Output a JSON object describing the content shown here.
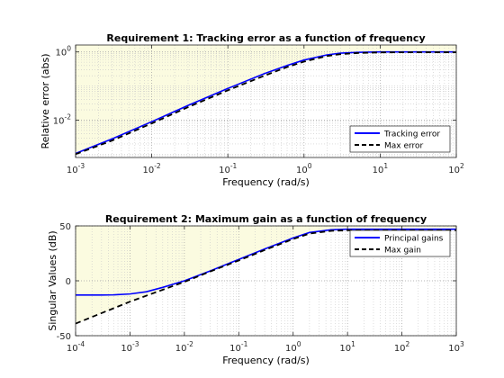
{
  "chart_data": [
    {
      "type": "line",
      "title": "Requirement 1: Tracking error as a function of frequency",
      "xlabel": "Frequency (rad/s)",
      "ylabel": "Relative error (abs)",
      "xscale": "log",
      "yscale": "log",
      "xlim": [
        0.001,
        100
      ],
      "ylim": [
        0.0008,
        1.6
      ],
      "x_ticks": [
        {
          "v": 0.001,
          "base": "10",
          "exp": "-3"
        },
        {
          "v": 0.01,
          "base": "10",
          "exp": "-2"
        },
        {
          "v": 0.1,
          "base": "10",
          "exp": "-1"
        },
        {
          "v": 1,
          "base": "10",
          "exp": "0"
        },
        {
          "v": 10,
          "base": "10",
          "exp": "1"
        },
        {
          "v": 100,
          "base": "10",
          "exp": "2"
        }
      ],
      "y_ticks": [
        {
          "v": 0.01,
          "base": "10",
          "exp": "-2"
        },
        {
          "v": 1,
          "base": "10",
          "exp": "0"
        }
      ],
      "grid": true,
      "legend_position": "bottom-right",
      "shaded_region": "above max error",
      "series": [
        {
          "name": "Tracking error",
          "color": "#0000ff",
          "style": "solid",
          "x": [
            0.001,
            0.003,
            0.01,
            0.03,
            0.1,
            0.3,
            0.6,
            1,
            2,
            3,
            5,
            10,
            30,
            100
          ],
          "y": [
            0.00105,
            0.0028,
            0.009,
            0.027,
            0.085,
            0.23,
            0.4,
            0.58,
            0.82,
            0.92,
            0.97,
            1.0,
            1.0,
            1.0
          ]
        },
        {
          "name": "Max error",
          "color": "#000000",
          "style": "dashed",
          "x": [
            0.001,
            0.003,
            0.01,
            0.03,
            0.1,
            0.3,
            0.6,
            1,
            2,
            3,
            5,
            10,
            30,
            100
          ],
          "y": [
            0.001,
            0.0025,
            0.008,
            0.024,
            0.075,
            0.2,
            0.36,
            0.52,
            0.76,
            0.86,
            0.93,
            0.97,
            0.98,
            0.98
          ]
        }
      ]
    },
    {
      "type": "line",
      "title": "Requirement 2: Maximum gain as a function of frequency",
      "xlabel": "Frequency (rad/s)",
      "ylabel": "Singular Values (dB)",
      "xscale": "log",
      "yscale": "linear",
      "xlim": [
        0.0001,
        1000
      ],
      "ylim": [
        -50,
        50
      ],
      "x_ticks": [
        {
          "v": 0.0001,
          "base": "10",
          "exp": "-4"
        },
        {
          "v": 0.001,
          "base": "10",
          "exp": "-3"
        },
        {
          "v": 0.01,
          "base": "10",
          "exp": "-2"
        },
        {
          "v": 0.1,
          "base": "10",
          "exp": "-1"
        },
        {
          "v": 1,
          "base": "10",
          "exp": "0"
        },
        {
          "v": 10,
          "base": "10",
          "exp": "1"
        },
        {
          "v": 100,
          "base": "10",
          "exp": "2"
        },
        {
          "v": 1000,
          "base": "10",
          "exp": "3"
        }
      ],
      "y_ticks": [
        {
          "v": 50,
          "label": "50"
        },
        {
          "v": 0,
          "label": "0"
        },
        {
          "v": -50,
          "label": "-50"
        }
      ],
      "grid": true,
      "legend_position": "top-right",
      "shaded_region": "above max gain",
      "series": [
        {
          "name": "Principal gains",
          "color": "#0000ff",
          "style": "solid",
          "x": [
            0.0001,
            0.0003,
            0.0005,
            0.001,
            0.002,
            0.004,
            0.01,
            0.03,
            0.1,
            0.3,
            1,
            2,
            5,
            10,
            100,
            1000
          ],
          "y": [
            -13,
            -13,
            -12.8,
            -12,
            -10,
            -6,
            0,
            9,
            19.5,
            29,
            39,
            44,
            46.5,
            47,
            47,
            47
          ]
        },
        {
          "name": "Max gain",
          "color": "#000000",
          "style": "dashed",
          "x": [
            0.0001,
            0.001,
            0.01,
            0.03,
            0.1,
            0.3,
            1,
            2,
            5,
            10,
            100,
            1000
          ],
          "y": [
            -39,
            -19,
            -1,
            8.5,
            18.5,
            28,
            38,
            43,
            45.5,
            46,
            46,
            46
          ]
        }
      ]
    }
  ]
}
